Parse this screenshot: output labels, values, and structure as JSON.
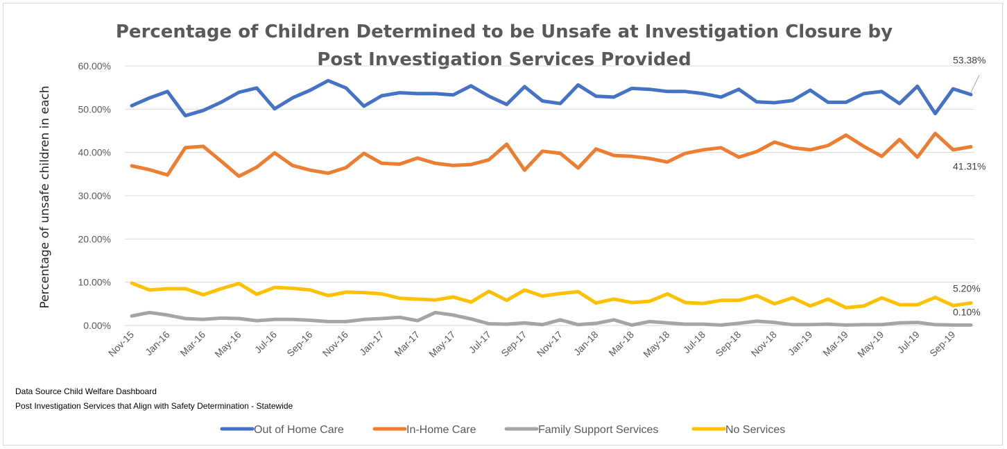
{
  "chart_data": {
    "type": "line",
    "title": [
      "Percentage of Children Determined to be Unsafe at Investigation Closure by",
      "Post Investigation Services Provided"
    ],
    "ylabel": "Percentage of unsafe children in each",
    "xlabel": "",
    "ylim": [
      0,
      60
    ],
    "yticks": [
      "0.00%",
      "10.00%",
      "20.00%",
      "30.00%",
      "40.00%",
      "50.00%",
      "60.00%"
    ],
    "grid": "horizontal",
    "legend_position": "bottom",
    "x": [
      "Nov-15",
      "Dec-15",
      "Jan-16",
      "Feb-16",
      "Mar-16",
      "Apr-16",
      "May-16",
      "Jun-16",
      "Jul-16",
      "Aug-16",
      "Sep-16",
      "Oct-16",
      "Nov-16",
      "Dec-16",
      "Jan-17",
      "Feb-17",
      "Mar-17",
      "Apr-17",
      "May-17",
      "Jun-17",
      "Jul-17",
      "Aug-17",
      "Sep-17",
      "Oct-17",
      "Nov-17",
      "Dec-17",
      "Jan-18",
      "Feb-18",
      "Mar-18",
      "Apr-18",
      "May-18",
      "Jun-18",
      "Jul-18",
      "Aug-18",
      "Sep-18",
      "Oct-18",
      "Nov-18",
      "Dec-18",
      "Jan-19",
      "Feb-19",
      "Mar-19",
      "Apr-19",
      "May-19",
      "Jun-19",
      "Jul-19",
      "Aug-19",
      "Sep-19",
      "Oct-19"
    ],
    "x_tick_labels": [
      "Nov-15",
      "Jan-16",
      "Mar-16",
      "May-16",
      "Jul-16",
      "Sep-16",
      "Nov-16",
      "Jan-17",
      "Mar-17",
      "May-17",
      "Jul-17",
      "Sep-17",
      "Nov-17",
      "Jan-18",
      "Mar-18",
      "May-18",
      "Jul-18",
      "Sep-18",
      "Nov-18",
      "Jan-19",
      "Mar-19",
      "May-19",
      "Jul-19",
      "Sep-19"
    ],
    "series": [
      {
        "name": "Out of Home Care",
        "color": "#4472c4",
        "end_label": "53.38%",
        "values": [
          50.8,
          52.6,
          54.1,
          48.5,
          49.7,
          51.6,
          53.9,
          54.9,
          50.1,
          52.6,
          54.4,
          56.6,
          54.9,
          50.7,
          53.1,
          53.8,
          53.6,
          53.6,
          53.3,
          55.4,
          53.0,
          51.1,
          55.2,
          51.9,
          51.3,
          55.6,
          53.0,
          52.8,
          54.8,
          54.6,
          54.1,
          54.1,
          53.6,
          52.8,
          54.6,
          51.7,
          51.5,
          52.0,
          54.4,
          51.6,
          51.6,
          53.6,
          54.1,
          51.3,
          55.3,
          49.0,
          54.7,
          53.38
        ]
      },
      {
        "name": "In-Home Care",
        "color": "#ed7d31",
        "end_label": "41.31%",
        "values": [
          36.9,
          36.0,
          34.8,
          41.1,
          41.4,
          38.0,
          34.5,
          36.6,
          39.9,
          37.0,
          35.9,
          35.2,
          36.5,
          39.8,
          37.5,
          37.3,
          38.7,
          37.5,
          37.0,
          37.2,
          38.3,
          41.9,
          35.9,
          40.3,
          39.8,
          36.4,
          40.8,
          39.3,
          39.1,
          38.6,
          37.8,
          39.8,
          40.6,
          41.1,
          38.9,
          40.2,
          42.4,
          41.1,
          40.6,
          41.6,
          44.0,
          41.4,
          39.1,
          43.0,
          38.9,
          44.4,
          40.6,
          41.31
        ]
      },
      {
        "name": "Family Support Services",
        "color": "#a5a5a5",
        "end_label": "0.10%",
        "values": [
          2.2,
          3.0,
          2.4,
          1.6,
          1.4,
          1.7,
          1.6,
          1.1,
          1.4,
          1.4,
          1.2,
          0.9,
          0.9,
          1.4,
          1.6,
          1.9,
          1.1,
          3.0,
          2.4,
          1.5,
          0.4,
          0.3,
          0.6,
          0.2,
          1.3,
          0.2,
          0.5,
          1.3,
          0.1,
          0.9,
          0.6,
          0.3,
          0.3,
          0.1,
          0.5,
          1.0,
          0.7,
          0.2,
          0.2,
          0.3,
          0.1,
          0.2,
          0.2,
          0.6,
          0.7,
          0.2,
          0.1,
          0.1
        ]
      },
      {
        "name": "No Services",
        "color": "#ffc000",
        "end_label": "5.20%",
        "values": [
          9.8,
          8.2,
          8.5,
          8.5,
          7.1,
          8.5,
          9.7,
          7.2,
          8.8,
          8.6,
          8.2,
          6.9,
          7.7,
          7.6,
          7.3,
          6.3,
          6.1,
          5.9,
          6.6,
          5.4,
          7.9,
          5.8,
          8.2,
          6.8,
          7.4,
          7.8,
          5.2,
          6.1,
          5.3,
          5.6,
          7.3,
          5.3,
          5.1,
          5.8,
          5.8,
          6.9,
          5.0,
          6.4,
          4.5,
          6.1,
          4.1,
          4.5,
          6.4,
          4.8,
          4.8,
          6.5,
          4.6,
          5.2
        ]
      }
    ]
  },
  "notes": [
    "Data Source Child Welfare Dashboard",
    "Post Investigation Services that Align with Safety Determination - Statewide"
  ]
}
